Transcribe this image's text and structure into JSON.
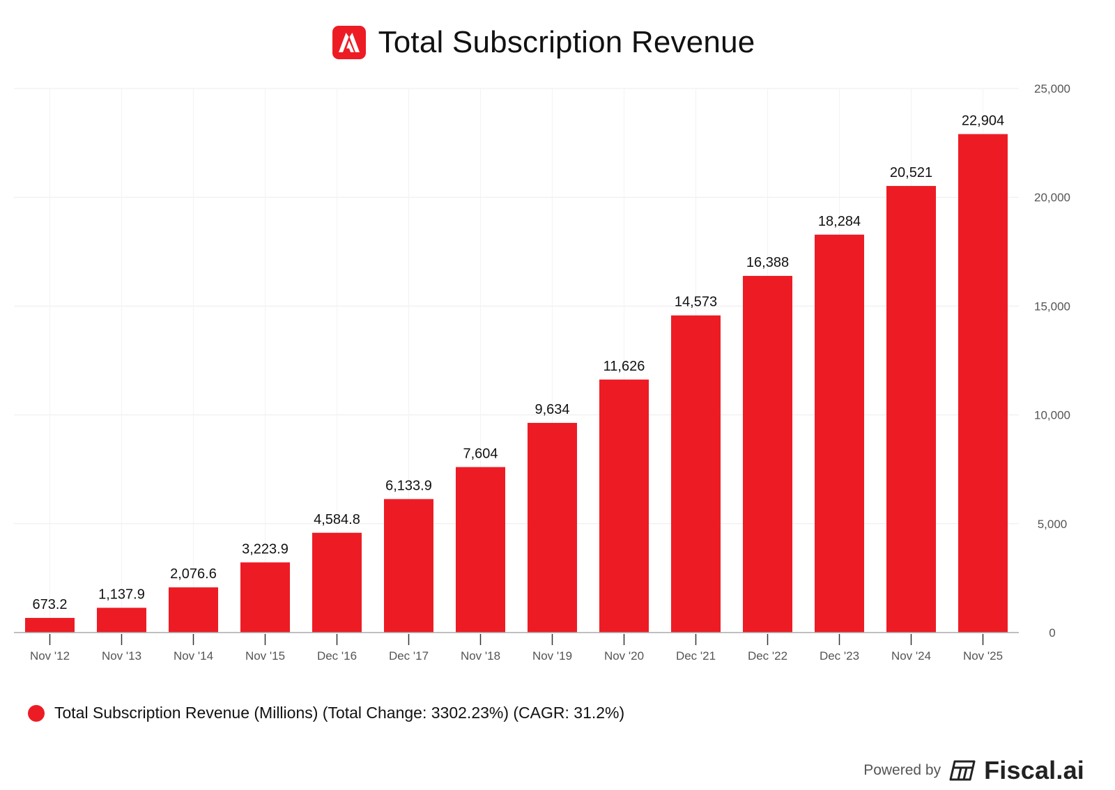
{
  "header": {
    "title": "Total Subscription Revenue",
    "logo_icon": "adobe-logo-icon"
  },
  "colors": {
    "bar": "#ED1C24",
    "logo_bg": "#ED1C24",
    "grid": "#ECECEC",
    "axis": "#AAAAAA",
    "tick_text": "#555555",
    "label_text": "#111111"
  },
  "chart_data": {
    "type": "bar",
    "categories": [
      "Nov '12",
      "Nov '13",
      "Nov '14",
      "Nov '15",
      "Dec '16",
      "Dec '17",
      "Nov '18",
      "Nov '19",
      "Nov '20",
      "Dec '21",
      "Dec '22",
      "Dec '23",
      "Nov '24",
      "Nov '25"
    ],
    "values": [
      673.2,
      1137.9,
      2076.6,
      3223.9,
      4584.8,
      6133.9,
      7604,
      9634,
      11626,
      14573,
      16388,
      18284,
      20521,
      22904
    ],
    "value_labels": [
      "673.2",
      "1,137.9",
      "2,076.6",
      "3,223.9",
      "4,584.8",
      "6,133.9",
      "7,604",
      "9,634",
      "11,626",
      "14,573",
      "16,388",
      "18,284",
      "20,521",
      "22,904"
    ],
    "ylim": [
      0,
      25000
    ],
    "y_ticks": [
      0,
      5000,
      10000,
      15000,
      20000,
      25000
    ],
    "y_tick_labels": [
      "0",
      "5,000",
      "10,000",
      "15,000",
      "20,000",
      "25,000"
    ],
    "y_axis_side": "right",
    "grid": true,
    "legend_position": "bottom-left",
    "series": [
      {
        "name": "Total Subscription Revenue (Millions) (Total Change: 3302.23%) (CAGR: 31.2%)"
      }
    ]
  },
  "legend": {
    "label": "Total Subscription Revenue (Millions) (Total Change: 3302.23%) (CAGR: 31.2%)"
  },
  "footer": {
    "powered_by": "Powered by",
    "brand": "Fiscal.ai",
    "brand_icon": "fiscal-logo-icon"
  }
}
